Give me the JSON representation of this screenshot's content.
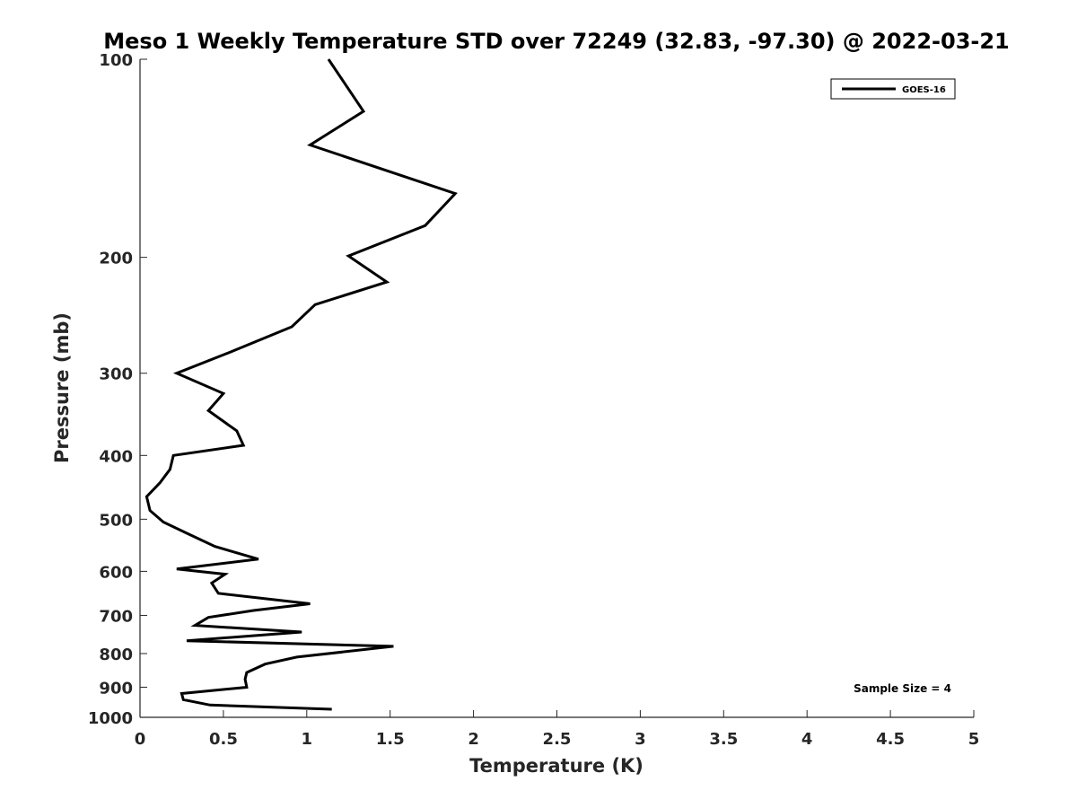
{
  "chart_data": {
    "type": "line",
    "title": "Meso 1 Weekly Temperature STD over 72249 (32.83, -97.30) @ 2022-03-21",
    "xlabel": "Temperature (K)",
    "ylabel": "Pressure (mb)",
    "xlim": [
      0,
      5
    ],
    "ylim": [
      100,
      1000
    ],
    "y_scale": "log",
    "y_reversed": true,
    "grid": false,
    "legend_position": "top-right",
    "x_ticks": [
      "0",
      "0.5",
      "1",
      "1.5",
      "2",
      "2.5",
      "3",
      "3.5",
      "4",
      "4.5",
      "5"
    ],
    "y_ticks": [
      "100",
      "200",
      "300",
      "400",
      "500",
      "600",
      "700",
      "800",
      "900",
      "1000"
    ],
    "annotation": "Sample Size = 4",
    "series": [
      {
        "name": "GOES-16",
        "color": "#000000",
        "points": [
          [
            1.13,
            100
          ],
          [
            1.34,
            120
          ],
          [
            1.02,
            135
          ],
          [
            1.89,
            160
          ],
          [
            1.71,
            179
          ],
          [
            1.25,
            199
          ],
          [
            1.48,
            218
          ],
          [
            1.05,
            236
          ],
          [
            0.91,
            255
          ],
          [
            0.52,
            280
          ],
          [
            0.22,
            300
          ],
          [
            0.5,
            322
          ],
          [
            0.41,
            342
          ],
          [
            0.58,
            367
          ],
          [
            0.62,
            386
          ],
          [
            0.2,
            400
          ],
          [
            0.18,
            420
          ],
          [
            0.12,
            440
          ],
          [
            0.04,
            462
          ],
          [
            0.06,
            485
          ],
          [
            0.14,
            505
          ],
          [
            0.28,
            525
          ],
          [
            0.45,
            550
          ],
          [
            0.71,
            575
          ],
          [
            0.22,
            595
          ],
          [
            0.51,
            606
          ],
          [
            0.43,
            625
          ],
          [
            0.47,
            648
          ],
          [
            1.02,
            672
          ],
          [
            0.68,
            688
          ],
          [
            0.41,
            705
          ],
          [
            0.33,
            725
          ],
          [
            0.97,
            742
          ],
          [
            0.28,
            765
          ],
          [
            1.52,
            780
          ],
          [
            0.94,
            810
          ],
          [
            0.75,
            830
          ],
          [
            0.64,
            855
          ],
          [
            0.63,
            875
          ],
          [
            0.64,
            900
          ],
          [
            0.25,
            920
          ],
          [
            0.26,
            940
          ],
          [
            0.42,
            958
          ],
          [
            1.15,
            972
          ]
        ]
      }
    ]
  }
}
